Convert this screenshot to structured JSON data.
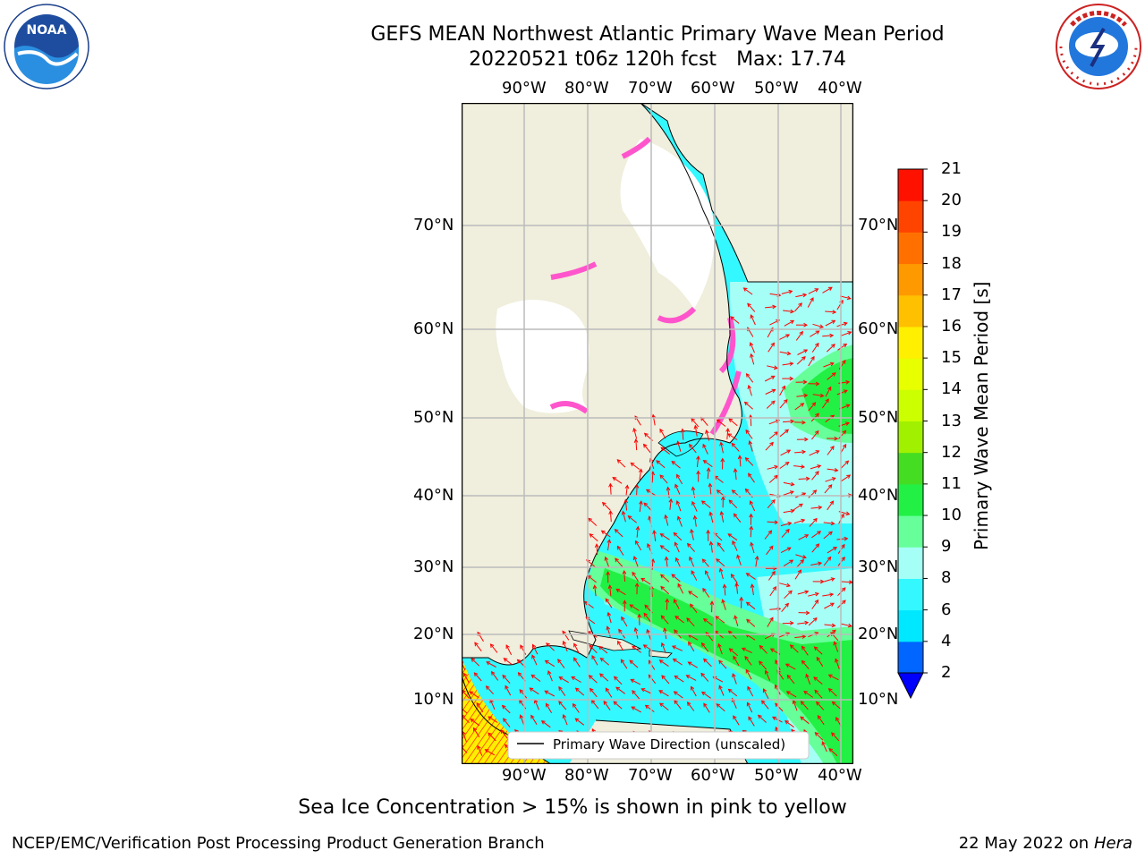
{
  "title": {
    "line1": "GEFS MEAN Northwest Atlantic Primary Wave Mean Period",
    "line2_date": "20220521 t06z 120h fcst",
    "line2_max": "Max: 17.74"
  },
  "map": {
    "lon_labels": [
      "90°W",
      "80°W",
      "70°W",
      "60°W",
      "50°W",
      "40°W"
    ],
    "lat_labels": [
      "70°N",
      "60°N",
      "50°N",
      "40°N",
      "30°N",
      "20°N",
      "10°N"
    ],
    "legend_text": "Primary Wave Direction (unscaled)",
    "colors": {
      "land": "#f0eedc",
      "ice": "#ff55cc",
      "arrow": "#ff0000",
      "grid": "#bbbbbb"
    }
  },
  "colorbar": {
    "label": "Primary Wave Mean Period [s]",
    "ticks": [
      "2",
      "4",
      "6",
      "8",
      "9",
      "10",
      "11",
      "12",
      "13",
      "14",
      "15",
      "16",
      "17",
      "18",
      "19",
      "20",
      "21"
    ],
    "bands": [
      "#0066ff",
      "#00e8ff",
      "#33f8ff",
      "#a6fff6",
      "#66ff99",
      "#22f044",
      "#44dd22",
      "#a0f000",
      "#ccff00",
      "#e8ff00",
      "#ffef00",
      "#ffc000",
      "#ff9900",
      "#ff7000",
      "#ff4400",
      "#ff1100"
    ],
    "under_color": "#0000ff"
  },
  "footer": {
    "note": "Sea Ice Concentration > 15% is shown in pink to yellow",
    "credit": "NCEP/EMC/Verification Post Processing Product Generation Branch",
    "date": "22 May 2022 on",
    "machine": "Hera"
  }
}
